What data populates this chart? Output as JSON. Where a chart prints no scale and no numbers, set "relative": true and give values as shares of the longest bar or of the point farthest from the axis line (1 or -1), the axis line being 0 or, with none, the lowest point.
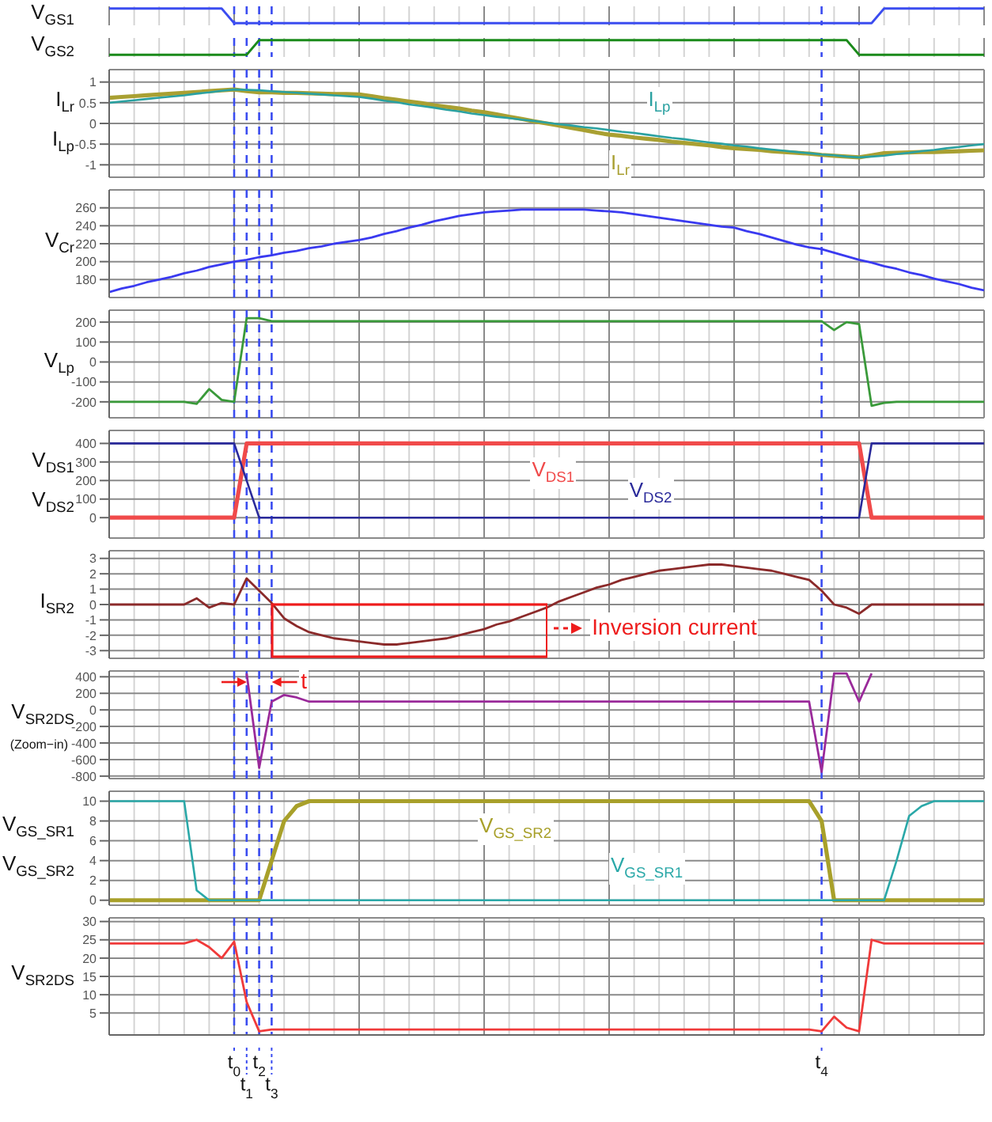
{
  "chart_data": [
    {
      "type": "line",
      "ylabel": "V$_{GS1}$",
      "relative": true,
      "grid": "x",
      "tick_labels": false,
      "categories": [
        null,
        null,
        null,
        null,
        null,
        null,
        null,
        null,
        null,
        null,
        null,
        null,
        null,
        null,
        null,
        null,
        null,
        null,
        null,
        null,
        null,
        null,
        null,
        null,
        null,
        null,
        null,
        null,
        null,
        null,
        null,
        null,
        null,
        null,
        null,
        null,
        null,
        null,
        null,
        null,
        null,
        null,
        null,
        null,
        null,
        null,
        null,
        null,
        null,
        null,
        null,
        null,
        null,
        null,
        null,
        null,
        null,
        null,
        null,
        null,
        null,
        null,
        null,
        null,
        null,
        null,
        null,
        null,
        null,
        null,
        null
      ],
      "series": [
        {
          "color": "#3b4cf0",
          "values": [
            1,
            1,
            1,
            1,
            1,
            1,
            1,
            1,
            1,
            1,
            0,
            0,
            0,
            0,
            0,
            0,
            0,
            0,
            0,
            0,
            0,
            0,
            0,
            0,
            0,
            0,
            0,
            0,
            0,
            0,
            0,
            0,
            0,
            0,
            0,
            0,
            0,
            0,
            0,
            0,
            0,
            0,
            0,
            0,
            0,
            0,
            0,
            0,
            0,
            0,
            0,
            0,
            0,
            0,
            0,
            0,
            0,
            0,
            0,
            0,
            0,
            0,
            1,
            1,
            1,
            1,
            1,
            1,
            1,
            1,
            1
          ]
        }
      ]
    },
    {
      "type": "line",
      "ylabel": "V$_{GS2}$",
      "relative": true,
      "grid": "x",
      "tick_labels": false,
      "categories": [
        null,
        null,
        null,
        null,
        null,
        null,
        null,
        null,
        null,
        null,
        null,
        null,
        null,
        null,
        null,
        null,
        null,
        null,
        null,
        null,
        null,
        null,
        null,
        null,
        null,
        null,
        null,
        null,
        null,
        null,
        null,
        null,
        null,
        null,
        null,
        null,
        null,
        null,
        null,
        null,
        null,
        null,
        null,
        null,
        null,
        null,
        null,
        null,
        null,
        null,
        null,
        null,
        null,
        null,
        null,
        null,
        null,
        null,
        null,
        null,
        null,
        null,
        null,
        null,
        null,
        null,
        null,
        null,
        null,
        null,
        null
      ],
      "series": [
        {
          "color": "#1a8a1a",
          "values": [
            0,
            0,
            0,
            0,
            0,
            0,
            0,
            0,
            0,
            0,
            0,
            0,
            1,
            1,
            1,
            1,
            1,
            1,
            1,
            1,
            1,
            1,
            1,
            1,
            1,
            1,
            1,
            1,
            1,
            1,
            1,
            1,
            1,
            1,
            1,
            1,
            1,
            1,
            1,
            1,
            1,
            1,
            1,
            1,
            1,
            1,
            1,
            1,
            1,
            1,
            1,
            1,
            1,
            1,
            1,
            1,
            1,
            1,
            1,
            1,
            0,
            0,
            0,
            0,
            0,
            0,
            0,
            0,
            0,
            0,
            0
          ]
        }
      ]
    },
    {
      "type": "line",
      "ylabel": "I$_{Lr}$\nI$_{Lp}$",
      "grid": true,
      "tick_labels": "y",
      "ylim": [
        -1.3,
        1.3
      ],
      "yticks": [
        -1,
        -0.5,
        0,
        0.5,
        1
      ],
      "categories": [
        null,
        null,
        null,
        null,
        null,
        null,
        null,
        null,
        null,
        null,
        null,
        null,
        null,
        null,
        null,
        null,
        null,
        null,
        null,
        null,
        null,
        null,
        null,
        null,
        null,
        null,
        null,
        null,
        null,
        null,
        null,
        null,
        null,
        null,
        null,
        null,
        null,
        null,
        null,
        null,
        null,
        null,
        null,
        null,
        null,
        null,
        null,
        null,
        null,
        null,
        null,
        null,
        null,
        null,
        null,
        null,
        null,
        null,
        null,
        null,
        null,
        null,
        null,
        null,
        null,
        null,
        null,
        null,
        null,
        null,
        null
      ],
      "series": [
        {
          "name": "I$_{Lr}$",
          "color": "#a9a032",
          "values": [
            0.62,
            0.64,
            0.66,
            0.68,
            0.7,
            0.72,
            0.74,
            0.76,
            0.78,
            0.8,
            0.82,
            0.78,
            0.75,
            0.75,
            0.74,
            0.74,
            0.73,
            0.72,
            0.71,
            0.71,
            0.7,
            0.66,
            0.61,
            0.57,
            0.53,
            0.49,
            0.44,
            0.4,
            0.36,
            0.31,
            0.27,
            0.22,
            0.16,
            0.11,
            0.05,
            0,
            -0.05,
            -0.11,
            -0.16,
            -0.22,
            -0.27,
            -0.3,
            -0.34,
            -0.37,
            -0.4,
            -0.44,
            -0.47,
            -0.5,
            -0.53,
            -0.57,
            -0.6,
            -0.62,
            -0.64,
            -0.67,
            -0.69,
            -0.71,
            -0.73,
            -0.76,
            -0.78,
            -0.8,
            -0.82,
            -0.77,
            -0.72,
            -0.71,
            -0.7,
            -0.69,
            -0.69,
            -0.68,
            -0.67,
            -0.66,
            -0.65
          ]
        },
        {
          "name": "I$_{Lp}$",
          "color": "#2aa1a1",
          "values": [
            0.5,
            0.53,
            0.56,
            0.59,
            0.62,
            0.65,
            0.68,
            0.72,
            0.75,
            0.79,
            0.82,
            0.81,
            0.8,
            0.78,
            0.76,
            0.74,
            0.72,
            0.7,
            0.68,
            0.66,
            0.64,
            0.6,
            0.55,
            0.51,
            0.46,
            0.42,
            0.38,
            0.33,
            0.29,
            0.24,
            0.2,
            0.16,
            0.13,
            0.09,
            0.06,
            0.02,
            -0.02,
            -0.05,
            -0.09,
            -0.12,
            -0.16,
            -0.2,
            -0.23,
            -0.27,
            -0.31,
            -0.35,
            -0.38,
            -0.42,
            -0.46,
            -0.49,
            -0.53,
            -0.56,
            -0.6,
            -0.63,
            -0.66,
            -0.69,
            -0.72,
            -0.75,
            -0.77,
            -0.8,
            -0.82,
            -0.8,
            -0.78,
            -0.74,
            -0.71,
            -0.67,
            -0.64,
            -0.6,
            -0.57,
            -0.53,
            -0.5
          ]
        }
      ]
    },
    {
      "type": "line",
      "ylabel": "V$_{Cr}$",
      "grid": true,
      "tick_labels": "y",
      "ylim": [
        160,
        280
      ],
      "yticks": [
        180,
        200,
        220,
        240,
        260
      ],
      "categories": [
        null,
        null,
        null,
        null,
        null,
        null,
        null,
        null,
        null,
        null,
        null,
        null,
        null,
        null,
        null,
        null,
        null,
        null,
        null,
        null,
        null,
        null,
        null,
        null,
        null,
        null,
        null,
        null,
        null,
        null,
        null,
        null,
        null,
        null,
        null,
        null,
        null,
        null,
        null,
        null,
        null,
        null,
        null,
        null,
        null,
        null,
        null,
        null,
        null,
        null,
        null,
        null,
        null,
        null,
        null,
        null,
        null,
        null,
        null,
        null,
        null,
        null,
        null,
        null,
        null,
        null,
        null,
        null,
        null,
        null,
        null
      ],
      "series": [
        {
          "color": "#3a3af0",
          "values": [
            166,
            170,
            173,
            177,
            180,
            183,
            187,
            190,
            194,
            197,
            200,
            202,
            205,
            207,
            210,
            212,
            215,
            217,
            220,
            222,
            224,
            227,
            231,
            234,
            238,
            241,
            245,
            248,
            251,
            253,
            255,
            256,
            257,
            258,
            258,
            258,
            258,
            258,
            258,
            257,
            256,
            255,
            253,
            251,
            249,
            247,
            245,
            243,
            241,
            239,
            238,
            234,
            231,
            227,
            223,
            219,
            216,
            214,
            210,
            206,
            202,
            199,
            195,
            192,
            188,
            185,
            181,
            178,
            175,
            171,
            168
          ]
        }
      ]
    },
    {
      "type": "line",
      "ylabel": "V$_{Lp}$",
      "grid": true,
      "tick_labels": "y",
      "ylim": [
        -280,
        260
      ],
      "yticks": [
        -200,
        -100,
        0,
        100,
        200
      ],
      "categories": [
        null,
        null,
        null,
        null,
        null,
        null,
        null,
        null,
        null,
        null,
        null,
        null,
        null,
        null,
        null,
        null,
        null,
        null,
        null,
        null,
        null,
        null,
        null,
        null,
        null,
        null,
        null,
        null,
        null,
        null,
        null,
        null,
        null,
        null,
        null,
        null,
        null,
        null,
        null,
        null,
        null,
        null,
        null,
        null,
        null,
        null,
        null,
        null,
        null,
        null,
        null,
        null,
        null,
        null,
        null,
        null,
        null,
        null,
        null,
        null,
        null,
        null,
        null,
        null,
        null,
        null,
        null,
        null,
        null,
        null,
        null
      ],
      "series": [
        {
          "color": "#3a9a3a",
          "values": [
            -200,
            -200,
            -200,
            -200,
            -200,
            -200,
            -200,
            -210,
            -136,
            -190,
            -200,
            220,
            220,
            205,
            205,
            205,
            205,
            205,
            205,
            205,
            205,
            205,
            205,
            205,
            205,
            205,
            205,
            205,
            205,
            205,
            205,
            205,
            205,
            205,
            205,
            205,
            205,
            205,
            205,
            205,
            205,
            205,
            205,
            205,
            205,
            205,
            205,
            205,
            205,
            205,
            205,
            205,
            205,
            205,
            205,
            205,
            205,
            205,
            160,
            200,
            190,
            -220,
            -205,
            -200,
            -200,
            -200,
            -200,
            -200,
            -200,
            -200,
            -200
          ]
        }
      ]
    },
    {
      "type": "line",
      "ylabel": "V$_{DS1}$\nV$_{DS2}$",
      "grid": true,
      "tick_labels": "y",
      "ylim": [
        -110,
        470
      ],
      "yticks": [
        0,
        100,
        200,
        300,
        400
      ],
      "categories": [
        null,
        null,
        null,
        null,
        null,
        null,
        null,
        null,
        null,
        null,
        null,
        null,
        null,
        null,
        null,
        null,
        null,
        null,
        null,
        null,
        null,
        null,
        null,
        null,
        null,
        null,
        null,
        null,
        null,
        null,
        null,
        null,
        null,
        null,
        null,
        null,
        null,
        null,
        null,
        null,
        null,
        null,
        null,
        null,
        null,
        null,
        null,
        null,
        null,
        null,
        null,
        null,
        null,
        null,
        null,
        null,
        null,
        null,
        null,
        null,
        null,
        null,
        null,
        null,
        null,
        null,
        null,
        null,
        null,
        null,
        null
      ],
      "series": [
        {
          "name": "V$_{DS1}$",
          "color": "#f04a4a",
          "values": [
            0,
            0,
            0,
            0,
            0,
            0,
            0,
            0,
            0,
            0,
            0,
            400,
            400,
            400,
            400,
            400,
            400,
            400,
            400,
            400,
            400,
            400,
            400,
            400,
            400,
            400,
            400,
            400,
            400,
            400,
            400,
            400,
            400,
            400,
            400,
            400,
            400,
            400,
            400,
            400,
            400,
            400,
            400,
            400,
            400,
            400,
            400,
            400,
            400,
            400,
            400,
            400,
            400,
            400,
            400,
            400,
            400,
            400,
            400,
            400,
            400,
            0,
            0,
            0,
            0,
            0,
            0,
            0,
            0,
            0,
            0
          ]
        },
        {
          "name": "V$_{DS2}$",
          "color": "#2a2a9a",
          "values": [
            400,
            400,
            400,
            400,
            400,
            400,
            400,
            400,
            400,
            400,
            400,
            200,
            0,
            0,
            0,
            0,
            0,
            0,
            0,
            0,
            0,
            0,
            0,
            0,
            0,
            0,
            0,
            0,
            0,
            0,
            0,
            0,
            0,
            0,
            0,
            0,
            0,
            0,
            0,
            0,
            0,
            0,
            0,
            0,
            0,
            0,
            0,
            0,
            0,
            0,
            0,
            0,
            0,
            0,
            0,
            0,
            0,
            0,
            0,
            0,
            0,
            400,
            400,
            400,
            400,
            400,
            400,
            400,
            400,
            400,
            400
          ]
        }
      ]
    },
    {
      "type": "line",
      "ylabel": "I$_{SR2}$",
      "grid": true,
      "tick_labels": "y",
      "ylim": [
        -3.5,
        3.5
      ],
      "yticks": [
        -3,
        -2,
        -1,
        0,
        1,
        2,
        3
      ],
      "categories": [
        null,
        null,
        null,
        null,
        null,
        null,
        null,
        null,
        null,
        null,
        null,
        null,
        null,
        null,
        null,
        null,
        null,
        null,
        null,
        null,
        null,
        null,
        null,
        null,
        null,
        null,
        null,
        null,
        null,
        null,
        null,
        null,
        null,
        null,
        null,
        null,
        null,
        null,
        null,
        null,
        null,
        null,
        null,
        null,
        null,
        null,
        null,
        null,
        null,
        null,
        null,
        null,
        null,
        null,
        null,
        null,
        null,
        null,
        null,
        null,
        null,
        null,
        null,
        null,
        null,
        null,
        null,
        null,
        null,
        null,
        null
      ],
      "series": [
        {
          "color": "#8b2a2a",
          "values": [
            0,
            0,
            0,
            0,
            0,
            0,
            0,
            0.4,
            -0.2,
            0.1,
            0,
            1.7,
            0.9,
            0.1,
            -0.9,
            -1.4,
            -1.8,
            -2.0,
            -2.2,
            -2.3,
            -2.4,
            -2.5,
            -2.6,
            -2.6,
            -2.5,
            -2.4,
            -2.3,
            -2.2,
            -2.0,
            -1.8,
            -1.6,
            -1.3,
            -1.1,
            -0.8,
            -0.5,
            -0.2,
            0.2,
            0.5,
            0.8,
            1.1,
            1.3,
            1.6,
            1.8,
            2.0,
            2.2,
            2.3,
            2.4,
            2.5,
            2.6,
            2.6,
            2.5,
            2.4,
            2.3,
            2.2,
            2.0,
            1.8,
            1.6,
            0.9,
            0,
            -0.2,
            -0.6,
            0,
            0,
            0,
            0,
            0,
            0,
            0,
            0,
            0,
            0
          ]
        }
      ],
      "annotations": [
        "Inversion current"
      ]
    },
    {
      "type": "line",
      "ylabel": "V$_{SR2DS}$",
      "subtitle": "(Zoom−in)",
      "grid": true,
      "tick_labels": "y",
      "ylim": [
        -830,
        470
      ],
      "yticks": [
        -800,
        -600,
        -400,
        -200,
        0,
        200,
        400
      ],
      "categories": [
        null,
        null,
        null,
        null,
        null,
        null,
        null,
        null,
        null,
        null,
        null,
        null,
        null,
        null,
        null,
        null,
        null,
        null,
        null,
        null,
        null,
        null,
        null,
        null,
        null,
        null,
        null,
        null,
        null,
        null,
        null,
        null,
        null,
        null,
        null,
        null,
        null,
        null,
        null,
        null,
        null,
        null,
        null,
        null,
        null,
        null,
        null,
        null,
        null,
        null,
        null,
        null,
        null,
        null,
        null,
        null,
        null,
        null,
        null,
        null,
        null,
        null,
        null,
        null,
        null,
        null,
        null,
        null,
        null,
        null,
        null
      ],
      "series": [
        {
          "color": "#9a2a9a",
          "values": [
            null,
            null,
            null,
            null,
            null,
            null,
            null,
            null,
            null,
            null,
            null,
            440,
            -700,
            100,
            180,
            150,
            100,
            100,
            100,
            100,
            100,
            100,
            100,
            100,
            100,
            100,
            100,
            100,
            100,
            100,
            100,
            100,
            100,
            100,
            100,
            100,
            100,
            100,
            100,
            100,
            100,
            100,
            100,
            100,
            100,
            100,
            100,
            100,
            100,
            100,
            100,
            100,
            100,
            100,
            100,
            100,
            100,
            -750,
            440,
            440,
            100,
            440,
            null,
            null,
            null,
            null,
            null,
            null,
            null,
            null,
            null
          ]
        }
      ],
      "annotations": [
        "t"
      ]
    },
    {
      "type": "line",
      "ylabel": "V$_{GS_SR1}$\nV$_{GS_SR2}$",
      "grid": true,
      "tick_labels": "y",
      "ylim": [
        -0.5,
        11
      ],
      "yticks": [
        0,
        2,
        4,
        6,
        8,
        10
      ],
      "categories": [
        null,
        null,
        null,
        null,
        null,
        null,
        null,
        null,
        null,
        null,
        null,
        null,
        null,
        null,
        null,
        null,
        null,
        null,
        null,
        null,
        null,
        null,
        null,
        null,
        null,
        null,
        null,
        null,
        null,
        null,
        null,
        null,
        null,
        null,
        null,
        null,
        null,
        null,
        null,
        null,
        null,
        null,
        null,
        null,
        null,
        null,
        null,
        null,
        null,
        null,
        null,
        null,
        null,
        null,
        null,
        null,
        null,
        null,
        null,
        null,
        null,
        null,
        null,
        null,
        null,
        null,
        null,
        null,
        null,
        null,
        null
      ],
      "series": [
        {
          "name": "V$_{GS_SR2}$",
          "color": "#a8a02a",
          "values": [
            0,
            0,
            0,
            0,
            0,
            0,
            0,
            0,
            0,
            0,
            0,
            0,
            0,
            4,
            8,
            9.5,
            10,
            10,
            10,
            10,
            10,
            10,
            10,
            10,
            10,
            10,
            10,
            10,
            10,
            10,
            10,
            10,
            10,
            10,
            10,
            10,
            10,
            10,
            10,
            10,
            10,
            10,
            10,
            10,
            10,
            10,
            10,
            10,
            10,
            10,
            10,
            10,
            10,
            10,
            10,
            10,
            10,
            8,
            0,
            0,
            0,
            0,
            0,
            0,
            0,
            0,
            0,
            0,
            0,
            0,
            0
          ]
        },
        {
          "name": "V$_{GS_SR1}$",
          "color": "#2aa8a8",
          "values": [
            10,
            10,
            10,
            10,
            10,
            10,
            10,
            1,
            0,
            0,
            0,
            0,
            0,
            0,
            0,
            0,
            0,
            0,
            0,
            0,
            0,
            0,
            0,
            0,
            0,
            0,
            0,
            0,
            0,
            0,
            0,
            0,
            0,
            0,
            0,
            0,
            0,
            0,
            0,
            0,
            0,
            0,
            0,
            0,
            0,
            0,
            0,
            0,
            0,
            0,
            0,
            0,
            0,
            0,
            0,
            0,
            0,
            0,
            0,
            0,
            0,
            0,
            0,
            4,
            8.5,
            9.5,
            10,
            10,
            10,
            10,
            10
          ]
        }
      ]
    },
    {
      "type": "line",
      "ylabel": "V$_{SR2DS}$",
      "grid": true,
      "ylim": [
        -1,
        31
      ],
      "yticks": [
        5,
        10,
        15,
        20,
        25,
        30
      ],
      "categories": [
        null,
        null,
        null,
        null,
        null,
        null,
        null,
        null,
        null,
        null,
        "t$_{0}$",
        "t$_{1}$",
        "t$_{2}$",
        "t$_{3}$",
        null,
        null,
        null,
        null,
        null,
        null,
        null,
        null,
        null,
        null,
        null,
        null,
        null,
        null,
        null,
        null,
        null,
        null,
        null,
        null,
        null,
        null,
        null,
        null,
        null,
        null,
        null,
        null,
        null,
        null,
        null,
        null,
        null,
        null,
        null,
        null,
        null,
        null,
        null,
        null,
        null,
        null,
        null,
        "t$_{4}$",
        null,
        null,
        null,
        null,
        null,
        null,
        null,
        null,
        null,
        null,
        null,
        null,
        null
      ],
      "series": [
        {
          "color": "#f03a3a",
          "values": [
            24,
            24,
            24,
            24,
            24,
            24,
            24,
            25,
            23,
            20,
            24.5,
            8,
            0,
            0.5,
            0.5,
            0.5,
            0.5,
            0.5,
            0.5,
            0.5,
            0.5,
            0.5,
            0.5,
            0.5,
            0.5,
            0.5,
            0.5,
            0.5,
            0.5,
            0.5,
            0.5,
            0.5,
            0.5,
            0.5,
            0.5,
            0.5,
            0.5,
            0.5,
            0.5,
            0.5,
            0.5,
            0.5,
            0.5,
            0.5,
            0.5,
            0.5,
            0.5,
            0.5,
            0.5,
            0.5,
            0.5,
            0.5,
            0.5,
            0.5,
            0.5,
            0.5,
            0.5,
            0,
            4,
            1,
            0,
            25,
            24,
            24,
            24,
            24,
            24,
            24,
            24,
            24,
            24
          ]
        }
      ]
    }
  ]
}
